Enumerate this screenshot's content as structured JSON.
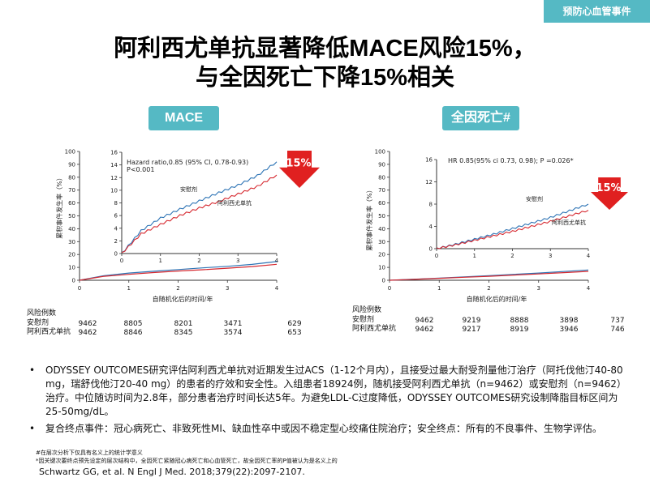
{
  "header": {
    "tag": "预防心血管事件",
    "title_line1": "阿利西尤单抗显著降低MACE风险15%，",
    "title_line2": "与全因死亡下降15%相关"
  },
  "colors": {
    "teal": "#55b9c4",
    "blue": "#2e74b5",
    "red": "#d62930",
    "arrow_red": "#e02020"
  },
  "chart_data": [
    {
      "type": "line",
      "pill": "MACE",
      "ylabel": "累积事件发生率（%）",
      "xlabel": "自随机化后的时间/年",
      "x_ticks": [
        "0",
        "1",
        "2",
        "3",
        "4"
      ],
      "y_ticks_main": [
        "0",
        "10",
        "20",
        "30",
        "40",
        "50",
        "60",
        "70",
        "80",
        "90",
        "100"
      ],
      "y_ticks_inset": [
        "0",
        "2",
        "4",
        "6",
        "8",
        "10",
        "12",
        "14",
        "16"
      ],
      "xlim": [
        0,
        4
      ],
      "ylim": [
        0,
        100
      ],
      "inset_ylim": [
        0,
        16
      ],
      "annotation": "Hazard ratio,0.85 (95% CI, 0.78-0.93)\nP<0.001",
      "reduction": "15%",
      "series": [
        {
          "name": "安慰剂",
          "x": [
            0,
            0.5,
            1,
            1.5,
            2,
            2.5,
            3,
            3.5,
            4
          ],
          "values": [
            0,
            3.6,
            5.6,
            7.0,
            8.3,
            9.6,
            10.8,
            12.3,
            14.5
          ]
        },
        {
          "name": "阿利西尤单抗",
          "x": [
            0,
            0.5,
            1,
            1.5,
            2,
            2.5,
            3,
            3.5,
            4
          ],
          "values": [
            0,
            3.1,
            4.6,
            6.0,
            7.2,
            8.2,
            9.4,
            10.6,
            12.4
          ]
        }
      ],
      "risk_table": {
        "header": "风险例数",
        "rows": [
          {
            "label": "安慰剂",
            "values": [
              "9462",
              "8805",
              "8201",
              "3471",
              "629"
            ]
          },
          {
            "label": "阿利西尤单抗",
            "values": [
              "9462",
              "8846",
              "8345",
              "3574",
              "653"
            ]
          }
        ]
      }
    },
    {
      "type": "line",
      "pill": "全因死亡#",
      "ylabel": "累积事件发生率（%）",
      "xlabel": "自随机化后的时间/年",
      "x_ticks": [
        "0",
        "1",
        "2",
        "3",
        "4"
      ],
      "y_ticks_main": [
        "0",
        "10",
        "20",
        "30",
        "40",
        "50",
        "60",
        "70",
        "80",
        "90",
        "100"
      ],
      "y_ticks_inset": [
        "0",
        "4",
        "8",
        "12",
        "16"
      ],
      "xlim": [
        0,
        4
      ],
      "ylim": [
        0,
        100
      ],
      "inset_ylim": [
        0,
        16
      ],
      "annotation": "HR 0.85(95% ci 0.73, 0.98); P =0.026*",
      "reduction": "15%",
      "series": [
        {
          "name": "安慰剂",
          "x": [
            0,
            0.5,
            1,
            1.5,
            2,
            2.5,
            3,
            3.5,
            4
          ],
          "values": [
            0,
            0.8,
            1.7,
            2.6,
            3.6,
            4.6,
            5.6,
            6.8,
            8.0
          ]
        },
        {
          "name": "阿利西尤单抗",
          "x": [
            0,
            0.5,
            1,
            1.5,
            2,
            2.5,
            3,
            3.5,
            4
          ],
          "values": [
            0,
            0.7,
            1.5,
            2.3,
            3.1,
            4.0,
            4.9,
            5.9,
            6.9
          ]
        }
      ],
      "risk_table": {
        "header": "风险例数",
        "rows": [
          {
            "label": "安慰剂",
            "values": [
              "9462",
              "9219",
              "8888",
              "3898",
              "737"
            ]
          },
          {
            "label": "阿利西尤单抗",
            "values": [
              "9462",
              "9217",
              "8919",
              "3946",
              "746"
            ]
          }
        ]
      }
    }
  ],
  "bullets": [
    "ODYSSEY OUTCOMES研究评估阿利西尤单抗对近期发生过ACS（1-12个月内），且接受过最大耐受剂量他汀治疗（阿托伐他汀40-80 mg，瑞舒伐他汀20-40 mg）的患者的疗效和安全性。入组患者18924例，随机接受阿利西尤单抗（n=9462）或安慰剂（n=9462）治疗。中位随访时间为2.8年，部分患者治疗时间长达5年。为避免LDL-C过度降低，ODYSSEY OUTCOMES研究设制降脂目标区间为25-50mg/dL。",
    "复合终点事件：冠心病死亡、非致死性MI、缺血性卒中或因不稳定型心绞痛住院治疗；安全终点：所有的不良事件、生物学评估。"
  ],
  "footnotes": [
    "#在层次分析下仅具有名义上的统计学意义",
    "*因关键次要终点预先设定的层次结构中，全因死亡紧随冠心病死亡和心血管死亡，故全因死亡率的P值被认为是名义上的",
    "Schwartz GG, et al. N Engl J Med. 2018;379(22):2097-2107."
  ]
}
